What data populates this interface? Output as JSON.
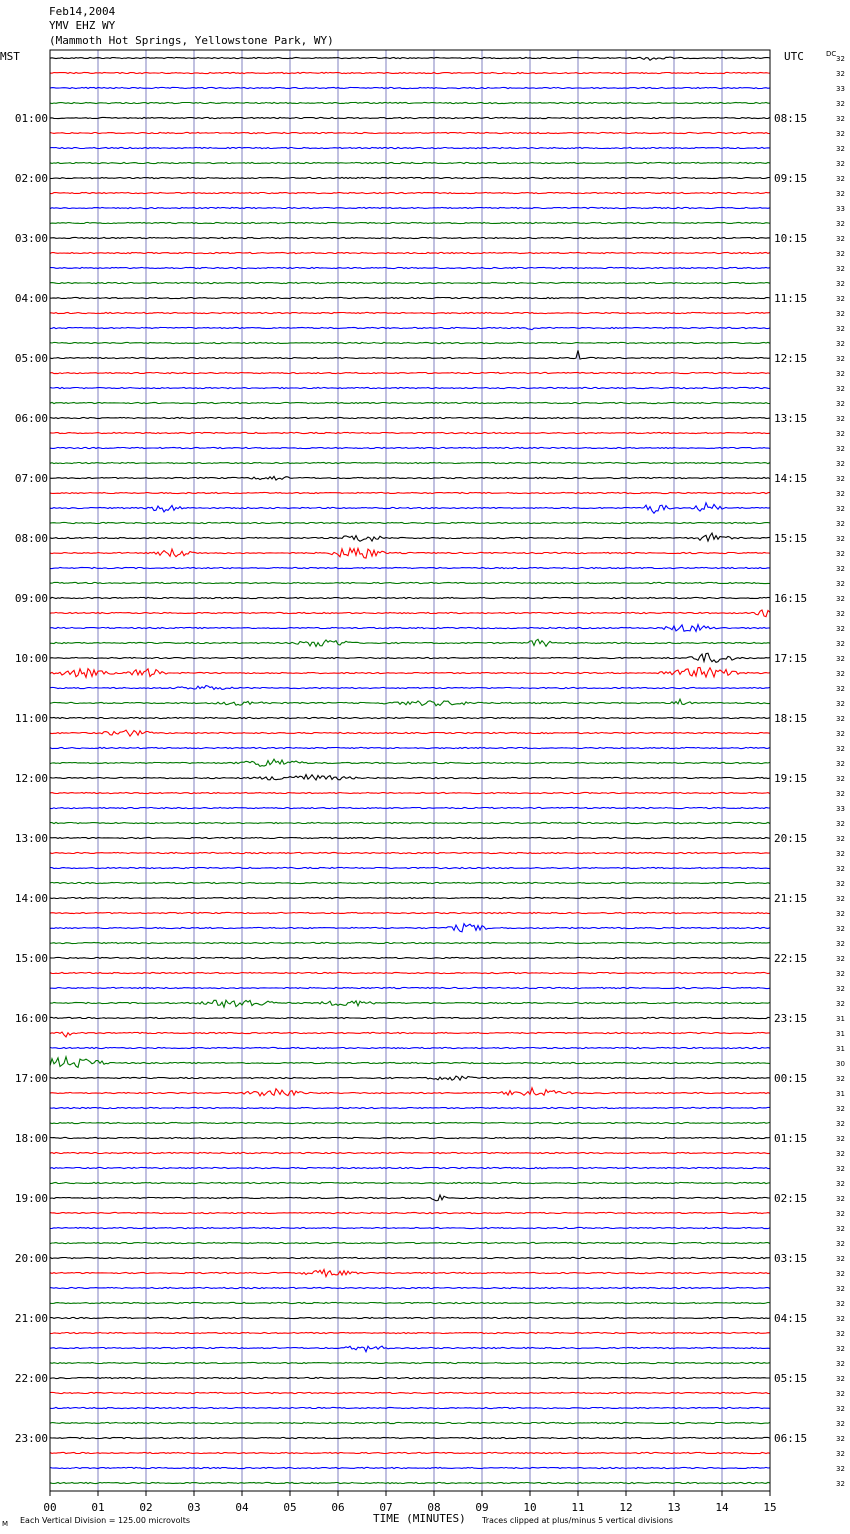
{
  "header": {
    "date": "Feb14,2004",
    "station": "YMV EHZ WY",
    "location": "(Mammoth Hot Springs, Yellowstone Park, WY)"
  },
  "axes": {
    "left_label": "MST",
    "right_label": "UTC",
    "dc_label": "DC",
    "xlabel": "TIME (MINUTES)"
  },
  "footer": {
    "scale_note": "Each Vertical Division =  125.00 microvolts",
    "clip_note": "Traces clipped at plus/minus 5 vertical divisions",
    "corner_mark": "M"
  },
  "chart_data": {
    "type": "line",
    "trace_colors": [
      "#000000",
      "#ff0000",
      "#0000ff",
      "#007700"
    ],
    "grid_color": "#8080c0",
    "x_ticks": [
      "00",
      "01",
      "02",
      "03",
      "04",
      "05",
      "06",
      "07",
      "08",
      "09",
      "10",
      "11",
      "12",
      "13",
      "14",
      "15"
    ],
    "xlim": [
      0,
      15
    ],
    "left_hour_labels": [
      "",
      "01:00",
      "02:00",
      "03:00",
      "04:00",
      "05:00",
      "06:00",
      "07:00",
      "08:00",
      "09:00",
      "10:00",
      "11:00",
      "12:00",
      "13:00",
      "14:00",
      "15:00",
      "16:00",
      "17:00",
      "18:00",
      "19:00",
      "20:00",
      "21:00",
      "22:00",
      "23:00"
    ],
    "right_hour_labels": [
      "",
      "08:15",
      "09:15",
      "10:15",
      "11:15",
      "12:15",
      "13:15",
      "14:15",
      "15:15",
      "16:15",
      "17:15",
      "18:15",
      "19:15",
      "20:15",
      "21:15",
      "22:15",
      "23:15",
      "00:15",
      "01:15",
      "02:15",
      "03:15",
      "04:15",
      "05:15",
      "06:15"
    ],
    "dc_offsets": [
      "32",
      "32",
      "33",
      "32",
      "32",
      "32",
      "32",
      "32",
      "32",
      "32",
      "33",
      "32",
      "32",
      "32",
      "32",
      "32",
      "32",
      "32",
      "32",
      "32",
      "32",
      "32",
      "32",
      "32",
      "32",
      "32",
      "32",
      "32",
      "32",
      "32",
      "32",
      "32",
      "32",
      "32",
      "32",
      "32",
      "32",
      "32",
      "32",
      "32",
      "32",
      "32",
      "32",
      "32",
      "32",
      "32",
      "32",
      "32",
      "32",
      "32",
      "33",
      "32",
      "32",
      "32",
      "32",
      "32",
      "32",
      "32",
      "32",
      "32",
      "32",
      "32",
      "32",
      "32",
      "31",
      "31",
      "31",
      "30",
      "32",
      "31",
      "32",
      "32",
      "32",
      "32",
      "32",
      "32",
      "32",
      "32",
      "32",
      "32",
      "32",
      "32",
      "32",
      "32",
      "32",
      "32",
      "32",
      "32",
      "32",
      "32",
      "32",
      "32",
      "32",
      "32",
      "32",
      "32"
    ],
    "events": [
      {
        "trace": 0,
        "minute": 12.6,
        "amp": 3,
        "width": 0.5
      },
      {
        "trace": 18,
        "minute": 10.0,
        "amp": 3,
        "width": 0.1
      },
      {
        "trace": 20,
        "minute": 11.0,
        "amp": 8,
        "width": 0.05
      },
      {
        "trace": 28,
        "minute": 4.6,
        "amp": 3,
        "width": 0.6
      },
      {
        "trace": 30,
        "minute": 2.4,
        "amp": 5,
        "width": 0.5
      },
      {
        "trace": 30,
        "minute": 12.6,
        "amp": 6,
        "width": 0.4
      },
      {
        "trace": 30,
        "minute": 13.7,
        "amp": 6,
        "width": 0.4
      },
      {
        "trace": 32,
        "minute": 6.5,
        "amp": 5,
        "width": 0.6
      },
      {
        "trace": 32,
        "minute": 13.8,
        "amp": 5,
        "width": 0.5
      },
      {
        "trace": 33,
        "minute": 2.6,
        "amp": 5,
        "width": 0.6
      },
      {
        "trace": 33,
        "minute": 6.4,
        "amp": 8,
        "width": 0.7
      },
      {
        "trace": 37,
        "minute": 14.9,
        "amp": 4,
        "width": 0.3
      },
      {
        "trace": 38,
        "minute": 13.3,
        "amp": 5,
        "width": 0.7
      },
      {
        "trace": 39,
        "minute": 5.7,
        "amp": 5,
        "width": 0.8
      },
      {
        "trace": 39,
        "minute": 10.2,
        "amp": 6,
        "width": 0.3
      },
      {
        "trace": 40,
        "minute": 13.8,
        "amp": 6,
        "width": 0.7
      },
      {
        "trace": 41,
        "minute": 0.7,
        "amp": 5,
        "width": 0.8
      },
      {
        "trace": 41,
        "minute": 2.0,
        "amp": 6,
        "width": 0.5
      },
      {
        "trace": 41,
        "minute": 13.6,
        "amp": 6,
        "width": 1.2
      },
      {
        "trace": 42,
        "minute": 3.2,
        "amp": 3,
        "width": 0.8
      },
      {
        "trace": 43,
        "minute": 4.0,
        "amp": 3,
        "width": 0.8
      },
      {
        "trace": 43,
        "minute": 8.0,
        "amp": 3,
        "width": 1.5
      },
      {
        "trace": 43,
        "minute": 13.2,
        "amp": 6,
        "width": 0.3
      },
      {
        "trace": 45,
        "minute": 1.6,
        "amp": 4,
        "width": 0.7
      },
      {
        "trace": 47,
        "minute": 4.6,
        "amp": 5,
        "width": 0.9
      },
      {
        "trace": 48,
        "minute": 5.3,
        "amp": 4,
        "width": 1.4
      },
      {
        "trace": 58,
        "minute": 8.7,
        "amp": 5,
        "width": 0.6
      },
      {
        "trace": 63,
        "minute": 3.9,
        "amp": 6,
        "width": 1.0
      },
      {
        "trace": 63,
        "minute": 6.2,
        "amp": 4,
        "width": 0.8
      },
      {
        "trace": 65,
        "minute": 0.3,
        "amp": 6,
        "width": 0.2
      },
      {
        "trace": 67,
        "minute": 0.4,
        "amp": 7,
        "width": 1.0
      },
      {
        "trace": 68,
        "minute": 8.4,
        "amp": 3,
        "width": 0.8
      },
      {
        "trace": 69,
        "minute": 4.7,
        "amp": 6,
        "width": 0.8
      },
      {
        "trace": 69,
        "minute": 10.1,
        "amp": 6,
        "width": 0.9
      },
      {
        "trace": 76,
        "minute": 8.1,
        "amp": 4,
        "width": 0.2
      },
      {
        "trace": 81,
        "minute": 5.8,
        "amp": 4,
        "width": 0.8
      },
      {
        "trace": 86,
        "minute": 6.6,
        "amp": 4,
        "width": 0.6
      }
    ]
  }
}
